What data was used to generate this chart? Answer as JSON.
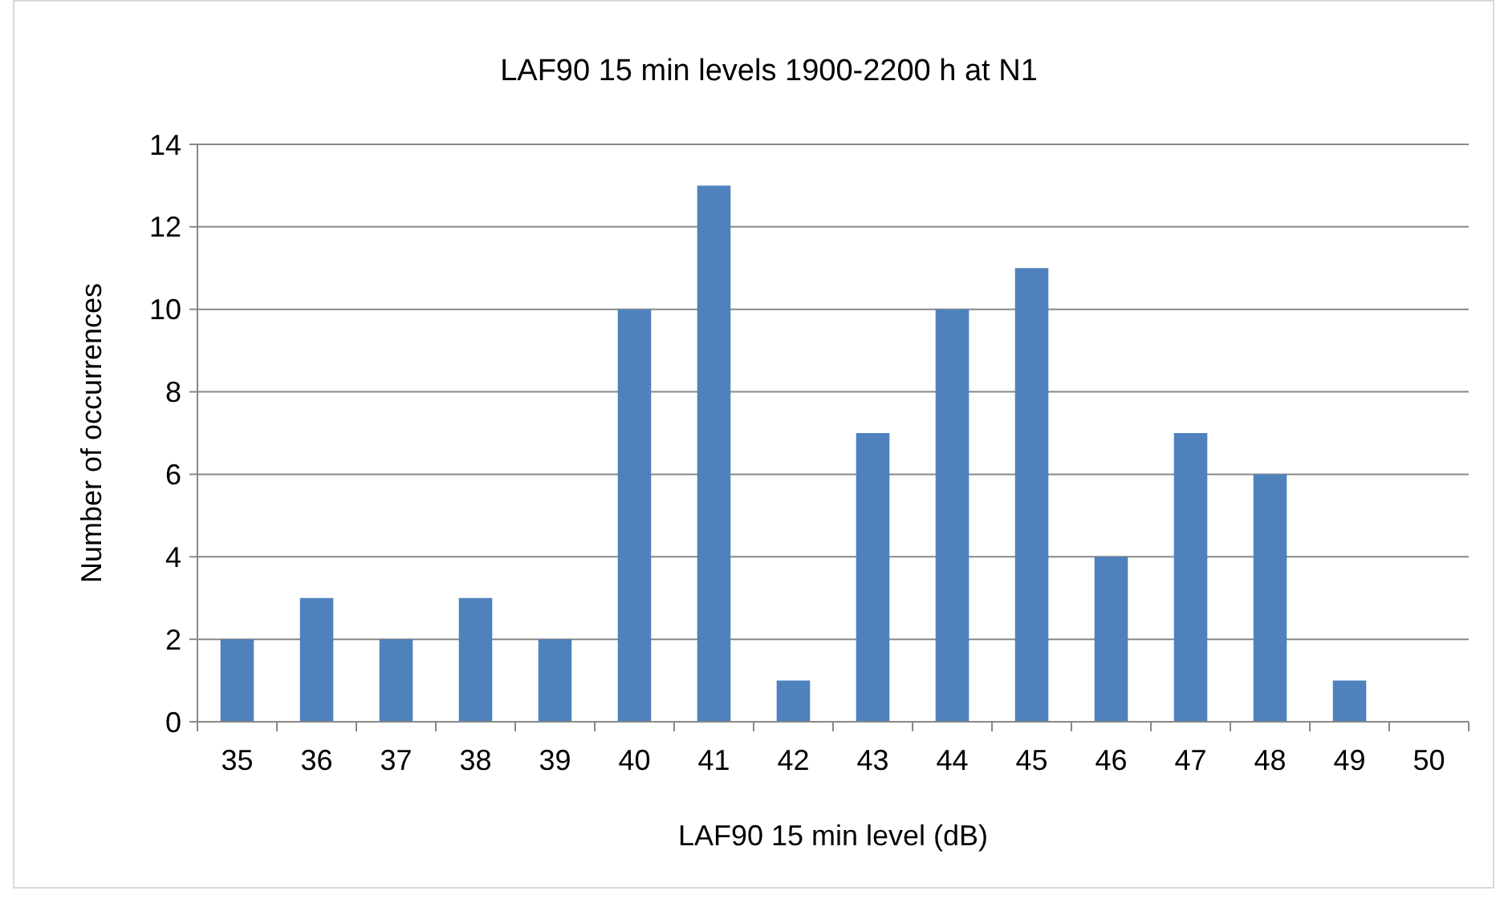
{
  "chart_data": {
    "type": "bar",
    "title": "LAF90 15 min levels 1900-2200 h at N1",
    "xlabel": "LAF90 15 min level (dB)",
    "ylabel": "Number of occurrences",
    "categories": [
      "35",
      "36",
      "37",
      "38",
      "39",
      "40",
      "41",
      "42",
      "43",
      "44",
      "45",
      "46",
      "47",
      "48",
      "49",
      "50"
    ],
    "values": [
      2,
      3,
      2,
      3,
      2,
      10,
      13,
      1,
      7,
      10,
      11,
      4,
      7,
      6,
      1,
      0
    ],
    "color": "#4f81bd",
    "ylim": [
      0,
      14
    ],
    "yticks": [
      0,
      2,
      4,
      6,
      8,
      10,
      12,
      14
    ],
    "grid": "y"
  }
}
